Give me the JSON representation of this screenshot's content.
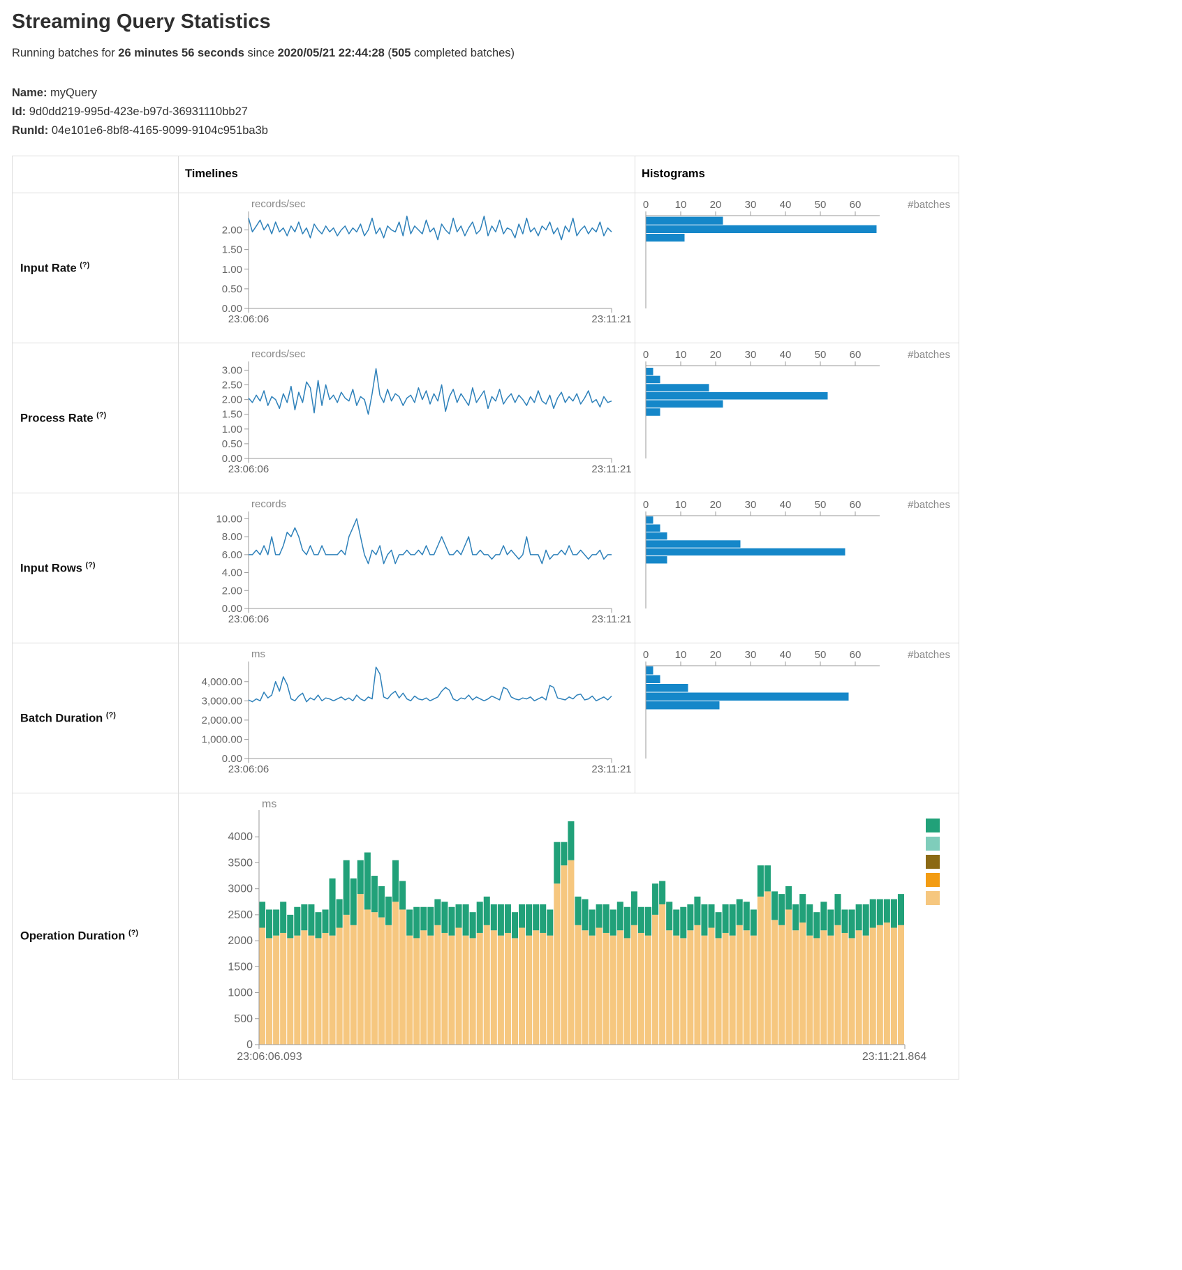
{
  "header": {
    "title": "Streaming Query Statistics",
    "summary": {
      "text1": "Running batches for ",
      "duration": "26 minutes 56 seconds",
      "text2": " since ",
      "timestamp": "2020/05/21 22:44:28",
      "text3": " (",
      "count": "505",
      "text4": " completed batches)"
    },
    "query": {
      "name_label": "Name:",
      "name": "myQuery",
      "id_label": "Id:",
      "id": "9d0dd219-995d-423e-b97d-36931110bb27",
      "runid_label": "RunId:",
      "runid": "04e101e6-8bf8-4165-9099-9104c951ba3b"
    }
  },
  "table": {
    "headers": {
      "timelines": "Timelines",
      "histograms": "Histograms"
    },
    "rows": [
      {
        "label": "Input Rate",
        "hint": "(?)"
      },
      {
        "label": "Process Rate",
        "hint": "(?)"
      },
      {
        "label": "Input Rows",
        "hint": "(?)"
      },
      {
        "label": "Batch Duration",
        "hint": "(?)"
      },
      {
        "label": "Operation Duration",
        "hint": "(?)"
      }
    ]
  },
  "colors": {
    "timeline_line": "#2e81ba",
    "histogram_bar": "#1587c9",
    "axis": "#999999",
    "tick_text": "#666666",
    "unit_text": "#888888"
  },
  "chart_data": [
    {
      "id": "input_rate_timeline",
      "type": "line",
      "unit": "records/sec",
      "x_start": "23:06:06",
      "x_end": "23:11:21",
      "ymax": 2.4,
      "y_ticks": [
        {
          "v": 0,
          "label": "0.00"
        },
        {
          "v": 0.5,
          "label": "0.50"
        },
        {
          "v": 1,
          "label": "1.00"
        },
        {
          "v": 1.5,
          "label": "1.50"
        },
        {
          "v": 2,
          "label": "2.00"
        }
      ],
      "values": [
        2.3,
        1.95,
        2.1,
        2.25,
        2.0,
        2.15,
        1.9,
        2.2,
        1.95,
        2.05,
        1.85,
        2.1,
        1.95,
        2.2,
        1.9,
        2.05,
        1.8,
        2.15,
        2.0,
        1.9,
        2.1,
        1.95,
        2.05,
        1.85,
        2.0,
        2.1,
        1.9,
        2.05,
        1.95,
        2.15,
        1.85,
        2.0,
        2.3,
        1.9,
        2.05,
        1.8,
        2.1,
        2.0,
        1.95,
        2.2,
        1.85,
        2.35,
        1.9,
        2.1,
        2.0,
        1.9,
        2.25,
        1.95,
        2.05,
        1.75,
        2.15,
        2.0,
        1.9,
        2.3,
        1.95,
        2.1,
        1.85,
        2.05,
        2.2,
        1.9,
        2.0,
        2.35,
        1.85,
        2.1,
        1.95,
        2.25,
        1.9,
        2.05,
        2.0,
        1.8,
        2.15,
        1.9,
        2.3,
        1.95,
        2.05,
        1.85,
        2.1,
        2.0,
        2.2,
        1.9,
        2.05,
        1.75,
        2.1,
        1.95,
        2.3,
        1.85,
        2.0,
        2.1,
        1.9,
        2.05,
        1.95,
        2.2,
        1.85,
        2.05,
        1.95
      ]
    },
    {
      "id": "input_rate_histogram",
      "type": "bar",
      "orientation": "horizontal",
      "xlabel": "#batches",
      "xmax": 67,
      "ymax": 2.4,
      "x_ticks": [
        {
          "v": 0,
          "label": "0"
        },
        {
          "v": 10,
          "label": "10"
        },
        {
          "v": 20,
          "label": "20"
        },
        {
          "v": 30,
          "label": "30"
        },
        {
          "v": 40,
          "label": "40"
        },
        {
          "v": 50,
          "label": "50"
        },
        {
          "v": 60,
          "label": "60"
        }
      ],
      "bins": [
        {
          "lo": 2.16,
          "hi": 2.38,
          "count": 22
        },
        {
          "lo": 1.94,
          "hi": 2.16,
          "count": 66
        },
        {
          "lo": 1.72,
          "hi": 1.94,
          "count": 11
        }
      ]
    },
    {
      "id": "process_rate_timeline",
      "type": "line",
      "unit": "records/sec",
      "x_start": "23:06:06",
      "x_end": "23:11:21",
      "ymax": 3.2,
      "y_ticks": [
        {
          "v": 0,
          "label": "0.00"
        },
        {
          "v": 0.5,
          "label": "0.50"
        },
        {
          "v": 1,
          "label": "1.00"
        },
        {
          "v": 1.5,
          "label": "1.50"
        },
        {
          "v": 2,
          "label": "2.00"
        },
        {
          "v": 2.5,
          "label": "2.50"
        },
        {
          "v": 3,
          "label": "3.00"
        }
      ],
      "values": [
        2.05,
        1.9,
        2.15,
        1.95,
        2.3,
        1.8,
        2.1,
        2.0,
        1.7,
        2.2,
        1.9,
        2.45,
        1.65,
        2.25,
        1.9,
        2.6,
        2.4,
        1.55,
        2.65,
        1.8,
        2.5,
        2.0,
        2.15,
        1.9,
        2.25,
        2.05,
        1.95,
        2.35,
        1.8,
        2.1,
        2.0,
        1.5,
        2.2,
        3.05,
        2.15,
        1.9,
        2.35,
        1.95,
        2.2,
        2.1,
        1.8,
        2.05,
        2.15,
        1.9,
        2.4,
        2.0,
        2.3,
        1.85,
        2.2,
        1.95,
        2.5,
        1.6,
        2.1,
        2.35,
        1.9,
        2.2,
        2.0,
        1.8,
        2.4,
        1.9,
        2.1,
        2.3,
        1.7,
        2.1,
        1.95,
        2.35,
        1.85,
        2.05,
        2.2,
        1.9,
        2.15,
        2.0,
        1.8,
        2.1,
        1.9,
        2.3,
        1.95,
        1.85,
        2.15,
        1.7,
        2.05,
        2.25,
        1.9,
        2.1,
        1.95,
        2.2,
        1.85,
        2.05,
        2.3,
        1.9,
        2.0,
        1.75,
        2.1,
        1.9,
        1.95
      ]
    },
    {
      "id": "process_rate_histogram",
      "type": "bar",
      "orientation": "horizontal",
      "xlabel": "#batches",
      "xmax": 67,
      "ymax": 3.2,
      "x_ticks": [
        {
          "v": 0,
          "label": "0"
        },
        {
          "v": 10,
          "label": "10"
        },
        {
          "v": 20,
          "label": "20"
        },
        {
          "v": 30,
          "label": "30"
        },
        {
          "v": 40,
          "label": "40"
        },
        {
          "v": 50,
          "label": "50"
        },
        {
          "v": 60,
          "label": "60"
        }
      ],
      "bins": [
        {
          "lo": 2.86,
          "hi": 3.14,
          "count": 2
        },
        {
          "lo": 2.58,
          "hi": 2.86,
          "count": 4
        },
        {
          "lo": 2.3,
          "hi": 2.58,
          "count": 18
        },
        {
          "lo": 2.02,
          "hi": 2.3,
          "count": 52
        },
        {
          "lo": 1.74,
          "hi": 2.02,
          "count": 22
        },
        {
          "lo": 1.46,
          "hi": 1.74,
          "count": 4
        }
      ]
    },
    {
      "id": "input_rows_timeline",
      "type": "line",
      "unit": "records",
      "x_start": "23:06:06",
      "x_end": "23:11:21",
      "ymax": 10.5,
      "y_ticks": [
        {
          "v": 0,
          "label": "0.00"
        },
        {
          "v": 2,
          "label": "2.00"
        },
        {
          "v": 4,
          "label": "4.00"
        },
        {
          "v": 6,
          "label": "6.00"
        },
        {
          "v": 8,
          "label": "8.00"
        },
        {
          "v": 10,
          "label": "10.00"
        }
      ],
      "values": [
        6,
        6,
        6.5,
        6,
        7,
        6,
        8,
        6,
        6,
        7,
        8.5,
        8,
        9,
        8,
        6.5,
        6,
        7,
        6,
        6,
        7,
        6,
        6,
        6,
        6,
        6.5,
        6,
        8,
        9,
        10,
        8,
        6,
        5,
        6.5,
        6,
        7,
        5,
        6,
        6.5,
        5,
        6,
        6,
        6.5,
        6,
        6,
        6.5,
        6,
        7,
        6,
        6,
        7,
        8,
        7,
        6,
        6,
        6.5,
        6,
        7,
        8,
        6,
        6,
        6.5,
        6,
        6,
        5.5,
        6,
        6,
        7,
        6,
        6.5,
        6,
        5.5,
        6,
        8,
        6,
        6,
        6,
        5,
        6.5,
        5.5,
        6,
        6,
        6.5,
        6,
        7,
        6,
        6,
        6.5,
        6,
        5.5,
        6,
        6,
        6.5,
        5.5,
        6,
        6
      ]
    },
    {
      "id": "input_rows_histogram",
      "type": "bar",
      "orientation": "horizontal",
      "xlabel": "#batches",
      "xmax": 67,
      "ymax": 10.5,
      "x_ticks": [
        {
          "v": 0,
          "label": "0"
        },
        {
          "v": 10,
          "label": "10"
        },
        {
          "v": 20,
          "label": "20"
        },
        {
          "v": 30,
          "label": "30"
        },
        {
          "v": 40,
          "label": "40"
        },
        {
          "v": 50,
          "label": "50"
        },
        {
          "v": 60,
          "label": "60"
        }
      ],
      "bins": [
        {
          "lo": 9.55,
          "hi": 10.45,
          "count": 2
        },
        {
          "lo": 8.65,
          "hi": 9.55,
          "count": 4
        },
        {
          "lo": 7.75,
          "hi": 8.65,
          "count": 6
        },
        {
          "lo": 6.85,
          "hi": 7.75,
          "count": 27
        },
        {
          "lo": 5.95,
          "hi": 6.85,
          "count": 57
        },
        {
          "lo": 5.05,
          "hi": 5.95,
          "count": 6
        }
      ]
    },
    {
      "id": "batch_duration_timeline",
      "type": "line",
      "unit": "ms",
      "x_start": "23:06:06",
      "x_end": "23:11:21",
      "ymax": 4900,
      "y_ticks": [
        {
          "v": 0,
          "label": "0.00"
        },
        {
          "v": 1000,
          "label": "1,000.00"
        },
        {
          "v": 2000,
          "label": "2,000.00"
        },
        {
          "v": 3000,
          "label": "3,000.00"
        },
        {
          "v": 4000,
          "label": "4,000.00"
        }
      ],
      "values": [
        3050,
        2950,
        3100,
        3000,
        3450,
        3150,
        3300,
        4000,
        3500,
        4250,
        3850,
        3100,
        3000,
        3250,
        3400,
        2950,
        3150,
        3050,
        3300,
        3000,
        3150,
        3100,
        3000,
        3100,
        3200,
        3050,
        3150,
        3000,
        3300,
        3100,
        3000,
        3200,
        3100,
        4750,
        4400,
        3200,
        3100,
        3350,
        3500,
        3150,
        3400,
        3100,
        3000,
        3250,
        3100,
        3050,
        3150,
        3000,
        3100,
        3200,
        3500,
        3700,
        3550,
        3100,
        3000,
        3150,
        3100,
        3300,
        3050,
        3200,
        3100,
        3000,
        3100,
        3250,
        3150,
        3050,
        3700,
        3600,
        3200,
        3100,
        3050,
        3150,
        3100,
        3200,
        3000,
        3100,
        3200,
        3050,
        3800,
        3700,
        3150,
        3100,
        3050,
        3200,
        3100,
        3300,
        3350,
        3050,
        3100,
        3250,
        3000,
        3100,
        3200,
        3050,
        3250
      ]
    },
    {
      "id": "batch_duration_histogram",
      "type": "bar",
      "orientation": "horizontal",
      "xlabel": "#batches",
      "xmax": 67,
      "ymax": 4900,
      "x_ticks": [
        {
          "v": 0,
          "label": "0"
        },
        {
          "v": 10,
          "label": "10"
        },
        {
          "v": 20,
          "label": "20"
        },
        {
          "v": 30,
          "label": "30"
        },
        {
          "v": 40,
          "label": "40"
        },
        {
          "v": 50,
          "label": "50"
        },
        {
          "v": 60,
          "label": "60"
        }
      ],
      "bins": [
        {
          "lo": 4420,
          "hi": 4880,
          "count": 2
        },
        {
          "lo": 3960,
          "hi": 4420,
          "count": 4
        },
        {
          "lo": 3500,
          "hi": 3960,
          "count": 12
        },
        {
          "lo": 3040,
          "hi": 3500,
          "count": 58
        },
        {
          "lo": 2580,
          "hi": 3040,
          "count": 21
        }
      ]
    },
    {
      "id": "operation_duration",
      "type": "bar",
      "stacked": true,
      "unit": "ms",
      "x_start": "23:06:06.093",
      "x_end": "23:11:21.864",
      "ymax": 4460,
      "y_ticks": [
        {
          "v": 0,
          "label": "0"
        },
        {
          "v": 500,
          "label": "500"
        },
        {
          "v": 1000,
          "label": "1000"
        },
        {
          "v": 1500,
          "label": "1500"
        },
        {
          "v": 2000,
          "label": "2000"
        },
        {
          "v": 2500,
          "label": "2500"
        },
        {
          "v": 3000,
          "label": "3000"
        },
        {
          "v": 3500,
          "label": "3500"
        },
        {
          "v": 4000,
          "label": "4000"
        }
      ],
      "legend_colors": [
        "#21a179",
        "#7fcdbb",
        "#8b6914",
        "#f39c12",
        "#f6c77f"
      ],
      "series": [
        {
          "color": "#f6c77f",
          "values": [
            2250,
            2050,
            2100,
            2150,
            2050,
            2100,
            2200,
            2100,
            2050,
            2150,
            2100,
            2250,
            2500,
            2300,
            2900,
            2600,
            2550,
            2450,
            2300,
            2750,
            2600,
            2100,
            2050,
            2200,
            2100,
            2300,
            2150,
            2100,
            2250,
            2100,
            2050,
            2150,
            2300,
            2200,
            2100,
            2150,
            2050,
            2250,
            2100,
            2200,
            2150,
            2100,
            3100,
            3450,
            3550,
            2300,
            2200,
            2100,
            2250,
            2150,
            2100,
            2200,
            2050,
            2300,
            2150,
            2100,
            2500,
            2700,
            2200,
            2100,
            2050,
            2200,
            2300,
            2100,
            2250,
            2050,
            2150,
            2100,
            2300,
            2200,
            2100,
            2850,
            2950,
            2400,
            2300,
            2600,
            2200,
            2350,
            2100,
            2050,
            2200,
            2100,
            2300,
            2150,
            2050,
            2200,
            2100,
            2250,
            2300,
            2350,
            2250,
            2300
          ]
        },
        {
          "color": "#21a179",
          "values": [
            500,
            550,
            500,
            600,
            450,
            550,
            500,
            600,
            500,
            450,
            1100,
            550,
            1050,
            900,
            650,
            1100,
            700,
            600,
            550,
            800,
            550,
            500,
            600,
            450,
            550,
            500,
            600,
            550,
            450,
            600,
            500,
            600,
            550,
            500,
            600,
            550,
            500,
            450,
            600,
            500,
            550,
            500,
            800,
            450,
            750,
            550,
            600,
            500,
            450,
            550,
            500,
            550,
            600,
            650,
            500,
            550,
            600,
            450,
            550,
            500,
            600,
            500,
            550,
            600,
            450,
            500,
            550,
            600,
            500,
            550,
            500,
            600,
            500,
            550,
            600,
            450,
            500,
            550,
            600,
            500,
            550,
            500,
            600,
            450,
            550,
            500,
            600,
            550,
            500,
            450,
            550,
            600
          ]
        }
      ]
    }
  ]
}
